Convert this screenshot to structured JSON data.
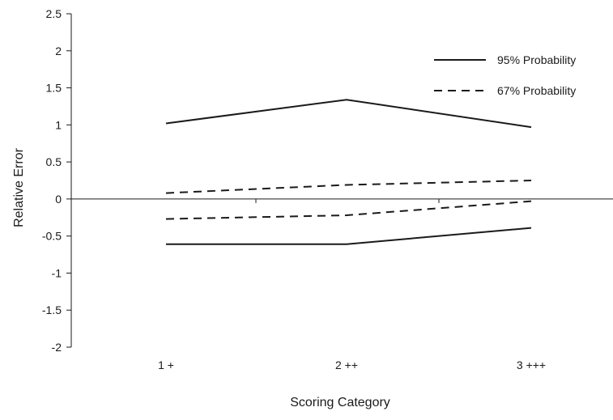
{
  "chart_data": {
    "type": "line",
    "title": "",
    "xlabel": "Scoring Category",
    "ylabel": "Relative Error",
    "categories": [
      "1 +",
      "2 ++",
      "3 +++"
    ],
    "ylim": [
      -2,
      2.5
    ],
    "yticks": [
      2.5,
      2,
      1.5,
      1,
      0.5,
      0,
      -0.5,
      -1,
      -1.5,
      -2
    ],
    "ytick_labels": [
      "2.5",
      "2",
      "1.5",
      "1",
      "0.5",
      "0",
      "-0.5",
      "-1",
      "-1.5",
      "-2"
    ],
    "grid": false,
    "zero_line": true,
    "legend_position": "top-right",
    "series": [
      {
        "name": "95% Probability",
        "style": "solid",
        "color": "#1a1a1a",
        "values": [
          1.02,
          1.34,
          0.97
        ],
        "show_in_legend": true
      },
      {
        "name": "67% Probability",
        "style": "dashed",
        "color": "#1a1a1a",
        "values": [
          0.08,
          0.19,
          0.25
        ],
        "show_in_legend": true
      },
      {
        "name": "67% Probability",
        "style": "dashed",
        "color": "#1a1a1a",
        "values": [
          -0.27,
          -0.22,
          -0.03
        ],
        "show_in_legend": false
      },
      {
        "name": "95% Probability",
        "style": "solid",
        "color": "#1a1a1a",
        "values": [
          -0.61,
          -0.61,
          -0.39
        ],
        "show_in_legend": false
      }
    ]
  }
}
